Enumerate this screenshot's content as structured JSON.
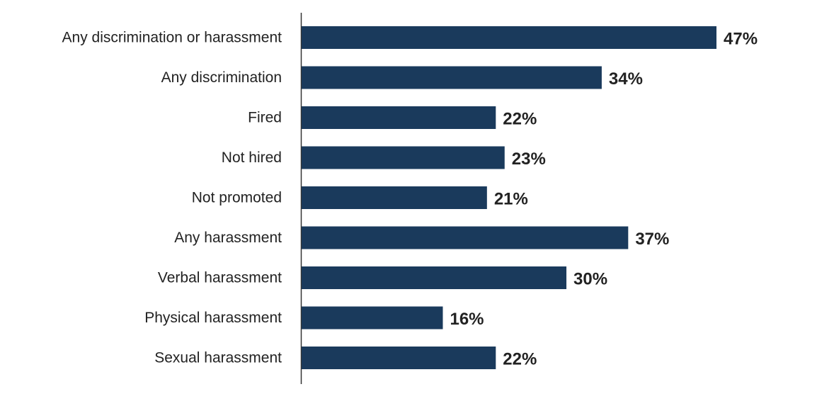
{
  "chart_data": {
    "type": "bar",
    "orientation": "horizontal",
    "categories": [
      "Any discrimination or harassment",
      "Any discrimination",
      "Fired",
      "Not hired",
      "Not promoted",
      "Any harassment",
      "Verbal harassment",
      "Physical harassment",
      "Sexual harassment"
    ],
    "values": [
      47,
      34,
      22,
      23,
      21,
      37,
      30,
      16,
      22
    ],
    "value_labels": [
      "47%",
      "34%",
      "22%",
      "23%",
      "21%",
      "37%",
      "30%",
      "16%",
      "22%"
    ],
    "unit": "%",
    "xlim": [
      0,
      47
    ],
    "bar_color": "#1a3a5c",
    "grid": false,
    "legend": "none"
  }
}
